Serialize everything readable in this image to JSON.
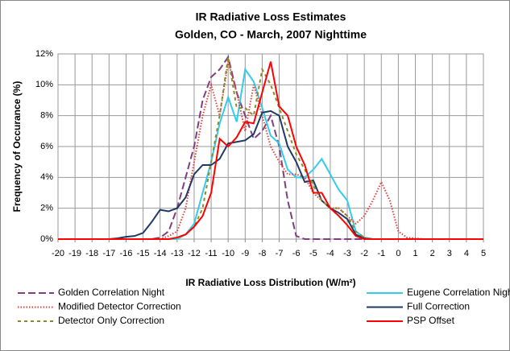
{
  "chart_data": {
    "type": "line",
    "title": "IR Radiative Loss Estimates",
    "subtitle": "Golden, CO - March, 2007 Nighttime",
    "x_label": "IR Radiative Loss Distribution (W/m²)",
    "y_label": "Frequency of Occurance (%)",
    "x": [
      -20,
      -19.5,
      -19,
      -18.5,
      -18,
      -17.5,
      -17,
      -16.5,
      -16,
      -15.5,
      -15,
      -14.5,
      -14,
      -13.5,
      -13,
      -12.5,
      -12,
      -11.5,
      -11,
      -10.5,
      -10,
      -9.5,
      -9,
      -8.5,
      -8,
      -7.5,
      -7,
      -6.5,
      -6,
      -5.5,
      -5,
      -4.5,
      -4,
      -3.5,
      -3,
      -2.5,
      -2,
      -1.5,
      -1,
      -0.5,
      0,
      0.5,
      1,
      1.5,
      2,
      2.5,
      3,
      3.5,
      4,
      4.5,
      5
    ],
    "xlim": [
      -20,
      5
    ],
    "xticks": [
      -20,
      -19,
      -18,
      -17,
      -16,
      -15,
      -14,
      -13,
      -12,
      -11,
      -10,
      -9,
      -8,
      -7,
      -6,
      -5,
      -4,
      -3,
      -2,
      -1,
      0,
      1,
      2,
      3,
      4,
      5
    ],
    "ylim": [
      0,
      12
    ],
    "yticks": [
      {
        "value": 0,
        "label": "0%"
      },
      {
        "value": 2,
        "label": "2%"
      },
      {
        "value": 4,
        "label": "4%"
      },
      {
        "value": 6,
        "label": "6%"
      },
      {
        "value": 8,
        "label": "8%"
      },
      {
        "value": 10,
        "label": "10%"
      },
      {
        "value": 12,
        "label": "12%"
      }
    ],
    "grid": true,
    "legend": "bottom",
    "series": [
      {
        "name": "Golden Correlation Night",
        "color": "#7f3f7f",
        "style": "dashed",
        "values": [
          0,
          0,
          0,
          0,
          0,
          0,
          0,
          0,
          0,
          0,
          0,
          0,
          0.1,
          0.5,
          2,
          4,
          6,
          9,
          10.5,
          11,
          11.8,
          9.5,
          8,
          6.5,
          7,
          8,
          6,
          2.5,
          0.2,
          0,
          0,
          0,
          0,
          0,
          0,
          0,
          0,
          0,
          0,
          0,
          0,
          0,
          0,
          0,
          0,
          0,
          0,
          0,
          0,
          0,
          0
        ]
      },
      {
        "name": "Eugene Correlation Night Adjusted",
        "color": "#33ccee",
        "style": "solid",
        "values": [
          0,
          0,
          0,
          0,
          0,
          0,
          0,
          0,
          0,
          0,
          0,
          0,
          0,
          0,
          0,
          0.3,
          1,
          3,
          5,
          7.5,
          9.2,
          7.6,
          11,
          10.2,
          8.5,
          6.7,
          6.2,
          4.5,
          4,
          4,
          4.5,
          5.2,
          4.2,
          3.2,
          2.5,
          0.5,
          0.1,
          0,
          0,
          0,
          0,
          0,
          0,
          0,
          0,
          0,
          0,
          0,
          0,
          0,
          0
        ]
      },
      {
        "name": "Modified Detector Correction",
        "color": "#e0403a",
        "style": "dotted",
        "values": [
          0,
          0,
          0,
          0,
          0,
          0,
          0,
          0,
          0,
          0,
          0,
          0,
          0,
          0.2,
          0.5,
          2,
          5,
          8,
          10,
          8,
          11.5,
          9.5,
          7,
          10,
          8,
          6,
          5,
          4.2,
          4.2,
          4,
          3,
          2.5,
          2,
          2,
          1.5,
          1,
          1.5,
          2.5,
          3.7,
          2.5,
          0.5,
          0.1,
          0.05,
          0,
          0,
          0,
          0,
          0,
          0,
          0,
          0
        ]
      },
      {
        "name": "Full Correction",
        "color": "#1f3864",
        "style": "solid",
        "values": [
          0,
          0,
          0,
          0,
          0,
          0,
          0,
          0.05,
          0.15,
          0.2,
          0.4,
          1.1,
          1.9,
          1.8,
          2,
          2.7,
          4.2,
          4.8,
          4.8,
          5.2,
          6.2,
          6.3,
          6.4,
          6.8,
          8.2,
          8.3,
          8,
          6,
          5,
          3.7,
          3.8,
          2.5,
          2,
          1.7,
          1.3,
          0.3,
          0.05,
          0,
          0,
          0,
          0,
          0,
          0,
          0,
          0,
          0,
          0,
          0,
          0,
          0,
          0
        ]
      },
      {
        "name": "Detector Only Correction",
        "color": "#8a8a2a",
        "style": "dashed2",
        "values": [
          0,
          0,
          0,
          0,
          0,
          0,
          0,
          0,
          0,
          0,
          0,
          0,
          0,
          0,
          0.1,
          0.3,
          0.8,
          2,
          5,
          8,
          11.8,
          8.5,
          8.5,
          8,
          11,
          10,
          8.5,
          7,
          5.5,
          4.5,
          3.5,
          2.5,
          2,
          2,
          1.5,
          0.5,
          0.1,
          0,
          0,
          0,
          0,
          0,
          0,
          0,
          0,
          0,
          0,
          0,
          0,
          0,
          0
        ]
      },
      {
        "name": "PSP Offset",
        "color": "#ff0000",
        "style": "solid",
        "values": [
          0,
          0,
          0,
          0,
          0,
          0,
          0,
          0,
          0,
          0,
          0,
          0,
          0,
          0,
          0.1,
          0.3,
          0.8,
          1.5,
          3,
          6.5,
          6,
          6.6,
          7.6,
          7.5,
          9.5,
          11.5,
          8.6,
          8,
          6,
          4.8,
          3,
          3,
          2,
          1.5,
          0.9,
          0.2,
          0,
          0,
          0,
          0,
          0,
          0,
          0,
          0,
          0,
          0,
          0,
          0,
          0,
          0,
          0
        ]
      }
    ]
  }
}
